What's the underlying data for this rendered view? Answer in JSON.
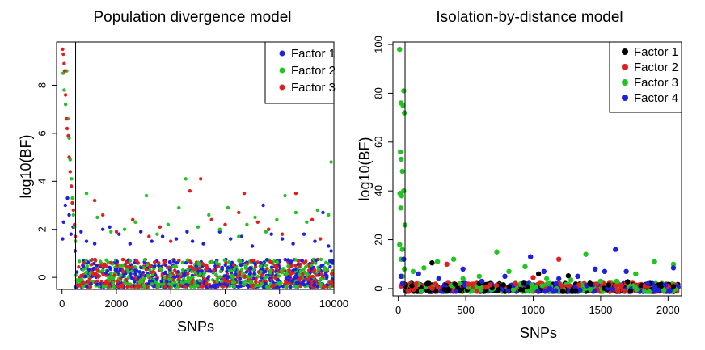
{
  "chart_data": [
    {
      "type": "scatter",
      "title": "Population divergence model",
      "xlabel": "SNPs",
      "ylabel": "log10(BF)",
      "xlim": [
        -200,
        10000
      ],
      "ylim": [
        -0.5,
        9.8
      ],
      "xticks": [
        0,
        2000,
        4000,
        6000,
        8000,
        10000
      ],
      "yticks": [
        0,
        2,
        4,
        6,
        8
      ],
      "xtick_labels": [
        "0",
        "2000",
        "4000",
        "6000",
        "8000",
        "10000"
      ],
      "ytick_labels": [
        "0",
        "2",
        "4",
        "6",
        "8"
      ],
      "vline_x": 500,
      "legend": {
        "placement": "top-right",
        "entries": [
          {
            "label": "Factor 1",
            "color": "#1f1fe0"
          },
          {
            "label": "Factor 2",
            "color": "#22c422"
          },
          {
            "label": "Factor 3",
            "color": "#e01f1f"
          }
        ]
      },
      "series": [
        {
          "name": "Factor 1",
          "color": "#1f1fe0",
          "points": [
            [
              20,
              1.6
            ],
            [
              60,
              2.3
            ],
            [
              120,
              3.0
            ],
            [
              200,
              3.3
            ],
            [
              260,
              2.6
            ],
            [
              330,
              1.8
            ],
            [
              410,
              2.1
            ],
            [
              480,
              1.1
            ],
            [
              700,
              1.9
            ],
            [
              900,
              1.5
            ],
            [
              1200,
              1.4
            ],
            [
              1500,
              2.0
            ],
            [
              1750,
              2.1
            ],
            [
              2100,
              1.8
            ],
            [
              2500,
              1.4
            ],
            [
              2900,
              1.9
            ],
            [
              3300,
              1.5
            ],
            [
              3700,
              1.7
            ],
            [
              4200,
              1.6
            ],
            [
              4600,
              1.9
            ],
            [
              4800,
              1.5
            ],
            [
              5200,
              1.4
            ],
            [
              5800,
              1.9
            ],
            [
              6200,
              1.6
            ],
            [
              6600,
              1.7
            ],
            [
              7000,
              1.3
            ],
            [
              7400,
              3.0
            ],
            [
              7700,
              1.8
            ],
            [
              8100,
              1.6
            ],
            [
              8500,
              1.4
            ],
            [
              8900,
              1.8
            ],
            [
              9300,
              1.5
            ],
            [
              9600,
              2.7
            ],
            [
              9800,
              1.3
            ],
            [
              9900,
              1.1
            ]
          ]
        },
        {
          "name": "Factor 2",
          "color": "#22c422",
          "points": [
            [
              40,
              8.5
            ],
            [
              80,
              7.8
            ],
            [
              130,
              7.2
            ],
            [
              170,
              8.6
            ],
            [
              220,
              6.6
            ],
            [
              260,
              5.8
            ],
            [
              300,
              4.9
            ],
            [
              350,
              4.1
            ],
            [
              380,
              3.3
            ],
            [
              420,
              2.6
            ],
            [
              460,
              2.1
            ],
            [
              490,
              1.5
            ],
            [
              900,
              3.5
            ],
            [
              1300,
              2.5
            ],
            [
              1800,
              1.9
            ],
            [
              2300,
              2.0
            ],
            [
              2700,
              2.3
            ],
            [
              3100,
              3.4
            ],
            [
              3500,
              1.8
            ],
            [
              3900,
              2.2
            ],
            [
              4300,
              2.9
            ],
            [
              4550,
              4.1
            ],
            [
              5000,
              2.1
            ],
            [
              5400,
              2.6
            ],
            [
              5800,
              2.0
            ],
            [
              6100,
              2.9
            ],
            [
              6500,
              1.7
            ],
            [
              6800,
              2.2
            ],
            [
              7100,
              2.5
            ],
            [
              7500,
              1.9
            ],
            [
              7900,
              2.4
            ],
            [
              8200,
              3.4
            ],
            [
              8600,
              2.7
            ],
            [
              9000,
              2.3
            ],
            [
              9400,
              2.8
            ],
            [
              9800,
              2.6
            ],
            [
              9900,
              4.8
            ]
          ]
        },
        {
          "name": "Factor 3",
          "color": "#e01f1f",
          "points": [
            [
              20,
              9.5
            ],
            [
              50,
              9.3
            ],
            [
              80,
              8.9
            ],
            [
              100,
              8.6
            ],
            [
              130,
              7.6
            ],
            [
              160,
              6.6
            ],
            [
              190,
              6.2
            ],
            [
              230,
              5.9
            ],
            [
              260,
              5.0
            ],
            [
              300,
              4.4
            ],
            [
              340,
              3.8
            ],
            [
              380,
              3.1
            ],
            [
              420,
              2.8
            ],
            [
              460,
              2.2
            ],
            [
              490,
              1.7
            ],
            [
              1200,
              3.2
            ],
            [
              1500,
              2.6
            ],
            [
              2000,
              1.9
            ],
            [
              2600,
              2.4
            ],
            [
              3200,
              1.7
            ],
            [
              3600,
              2.1
            ],
            [
              4000,
              1.5
            ],
            [
              4700,
              3.6
            ],
            [
              5100,
              4.1
            ],
            [
              5500,
              2.4
            ],
            [
              6000,
              2.2
            ],
            [
              6500,
              2.7
            ],
            [
              6700,
              3.5
            ],
            [
              7200,
              2.3
            ],
            [
              7600,
              2.0
            ],
            [
              8100,
              1.8
            ],
            [
              8600,
              3.5
            ],
            [
              9200,
              2.4
            ],
            [
              9500,
              1.6
            ]
          ]
        }
      ]
    },
    {
      "type": "scatter",
      "title": "Isolation-by-distance model",
      "xlabel": "SNPs",
      "ylabel": "log10(BF)",
      "xlim": [
        -40,
        2100
      ],
      "ylim": [
        -3,
        101
      ],
      "xticks": [
        0,
        500,
        1000,
        1500,
        2000
      ],
      "yticks": [
        0,
        20,
        40,
        60,
        80,
        100
      ],
      "xtick_labels": [
        "0",
        "500",
        "1000",
        "1500",
        "2000"
      ],
      "ytick_labels": [
        "0",
        "20",
        "40",
        "60",
        "80",
        "100"
      ],
      "vline_x": 50,
      "legend": {
        "placement": "top-right",
        "entries": [
          {
            "label": "Factor 1",
            "color": "#000000"
          },
          {
            "label": "Factor 2",
            "color": "#e01f1f"
          },
          {
            "label": "Factor 3",
            "color": "#22c422"
          },
          {
            "label": "Factor 4",
            "color": "#1f1fe0"
          }
        ]
      },
      "series": [
        {
          "name": "Factor 1",
          "color": "#000000",
          "points": [
            [
              100,
              1.2
            ],
            [
              250,
              10.5
            ],
            [
              420,
              1.8
            ],
            [
              600,
              2.0
            ],
            [
              780,
              1.5
            ],
            [
              930,
              2.2
            ],
            [
              1040,
              6.0
            ],
            [
              1260,
              5.2
            ],
            [
              1420,
              2.2
            ],
            [
              1560,
              1.5
            ],
            [
              1700,
              2.8
            ],
            [
              1800,
              1.3
            ],
            [
              1950,
              1.0
            ],
            [
              2040,
              0.8
            ]
          ]
        },
        {
          "name": "Factor 2",
          "color": "#e01f1f",
          "points": [
            [
              20,
              1.0
            ],
            [
              40,
              2.0
            ],
            [
              360,
              10.0
            ],
            [
              520,
              1.8
            ],
            [
              680,
              1.5
            ],
            [
              870,
              2.0
            ],
            [
              1000,
              4.5
            ],
            [
              1190,
              12.0
            ],
            [
              1340,
              1.5
            ],
            [
              1470,
              1.8
            ],
            [
              1650,
              1.3
            ],
            [
              1830,
              1.2
            ],
            [
              2000,
              1.0
            ]
          ]
        },
        {
          "name": "Factor 3",
          "color": "#22c422",
          "points": [
            [
              10,
              98
            ],
            [
              40,
              81
            ],
            [
              20,
              76
            ],
            [
              35,
              75
            ],
            [
              45,
              72
            ],
            [
              15,
              56
            ],
            [
              22,
              53
            ],
            [
              30,
              48
            ],
            [
              12,
              39
            ],
            [
              25,
              38
            ],
            [
              40,
              40
            ],
            [
              18,
              33
            ],
            [
              50,
              26
            ],
            [
              10,
              18
            ],
            [
              30,
              16
            ],
            [
              20,
              12
            ],
            [
              45,
              8
            ],
            [
              30,
              5
            ],
            [
              110,
              7
            ],
            [
              190,
              8.5
            ],
            [
              290,
              11
            ],
            [
              410,
              12
            ],
            [
              480,
              4
            ],
            [
              600,
              5
            ],
            [
              730,
              15
            ],
            [
              820,
              7
            ],
            [
              940,
              9
            ],
            [
              1100,
              4
            ],
            [
              1280,
              3.5
            ],
            [
              1390,
              14
            ],
            [
              1500,
              3
            ],
            [
              1620,
              3
            ],
            [
              1760,
              6
            ],
            [
              1900,
              11
            ],
            [
              2040,
              10
            ]
          ]
        },
        {
          "name": "Factor 4",
          "color": "#1f1fe0",
          "points": [
            [
              20,
              5
            ],
            [
              40,
              12
            ],
            [
              30,
              2
            ],
            [
              150,
              6
            ],
            [
              300,
              4
            ],
            [
              480,
              8
            ],
            [
              620,
              3
            ],
            [
              790,
              5
            ],
            [
              980,
              13
            ],
            [
              1080,
              7
            ],
            [
              1190,
              4
            ],
            [
              1330,
              5
            ],
            [
              1460,
              8
            ],
            [
              1530,
              7
            ],
            [
              1610,
              16
            ],
            [
              1690,
              7
            ],
            [
              1850,
              2
            ],
            [
              1980,
              1.5
            ],
            [
              2040,
              8.5
            ]
          ]
        }
      ]
    }
  ]
}
